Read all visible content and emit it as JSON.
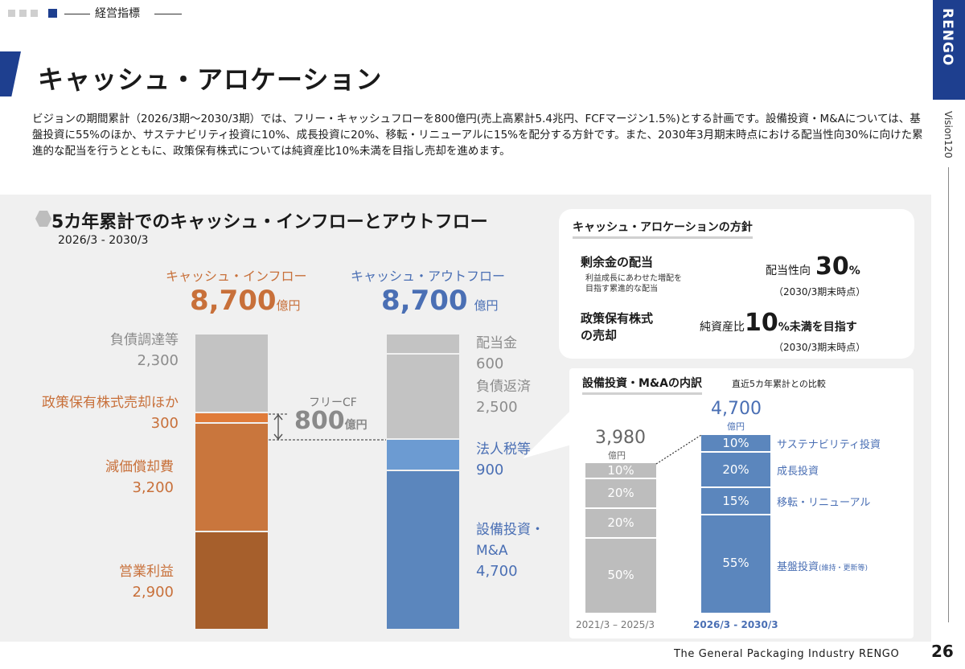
{
  "header": {
    "section_label": "経営指標",
    "page_title": "キャッシュ・アロケーション",
    "intro": "ビジョンの期間累計（2026/3期～2030/3期）では、フリー・キャッシュフローを800億円(売上高累計5.4兆円、FCFマージン1.5%)とする計画です。設備投資・M&Aについては、基盤投資に55%のほか、サステナビリティ投資に10%、成長投資に20%、移転・リニューアルに15%を配分する方針です。また、2030年3月期末時点における配当性向30%に向けた累進的な配当を行うとともに、政策保有株式については純資産比10%未満を目指し売却を進めます。"
  },
  "side": {
    "brand": "RENGO",
    "vision": "Vision120"
  },
  "flow_chart": {
    "title": "5カ年累計でのキャッシュ・インフローとアウトフロー",
    "period": "2026/3 - 2030/3",
    "inflow_heading": "キャッシュ・インフロー",
    "inflow_total": "8,700",
    "outflow_heading": "キャッシュ・アウトフロー",
    "outflow_total": "8,700",
    "unit": "億円",
    "free_cf_label": "フリーCF",
    "free_cf_value": "800",
    "inflows": [
      {
        "label": "負債調達等",
        "value": "2,300",
        "color": "#c3c3c3"
      },
      {
        "label": "政策保有株式売却ほか",
        "value": "300",
        "color": "#e07b39"
      },
      {
        "label": "減価償却費",
        "value": "3,200",
        "color": "#c9763d"
      },
      {
        "label": "営業利益",
        "value": "2,900",
        "color": "#a65f2c"
      }
    ],
    "outflows": [
      {
        "label": "配当金",
        "value": "600",
        "color": "#c3c3c3"
      },
      {
        "label": "負債返済",
        "value": "2,500",
        "color": "#c3c3c3"
      },
      {
        "label": "法人税等",
        "value": "900",
        "color": "#6c9bd2"
      },
      {
        "label": "設備投資・M&A",
        "value": "4,700",
        "color": "#5b86bd"
      }
    ]
  },
  "policy": {
    "title": "キャッシュ・アロケーションの方針",
    "item1_heading": "剰余金の配当",
    "item1_note_line1": "利益成長にあわせた増配を",
    "item1_note_line2": "目指す累進的な配当",
    "item1_label": "配当性向",
    "item1_value": "30",
    "item1_pct": "%",
    "item1_note2": "（2030/3期末時点）",
    "item2_heading_line1": "政策保有株式",
    "item2_heading_line2": "の売却",
    "item2_label": "純資産比",
    "item2_value": "10",
    "item2_suffix": "%未満を目指す",
    "item2_note": "（2030/3期末時点）"
  },
  "capex": {
    "title": "設備投資・M&Aの内訳",
    "subtitle": "直近5カ年累計との比較",
    "old_total": "3,980",
    "new_total": "4,700",
    "unit": "億円",
    "old_period": "2021/3 – 2025/3",
    "new_period": "2026/3 - 2030/3",
    "old_segments": [
      "10%",
      "20%",
      "20%",
      "50%"
    ],
    "new_segments": [
      "10%",
      "20%",
      "15%",
      "55%"
    ],
    "new_labels": [
      "サステナビリティ投資",
      "成長投資",
      "移転・リニューアル",
      "基盤投資"
    ],
    "base_note": "(維持・更新等)"
  },
  "footer": {
    "company": "The General Packaging Industry RENGO",
    "page": "26"
  }
}
